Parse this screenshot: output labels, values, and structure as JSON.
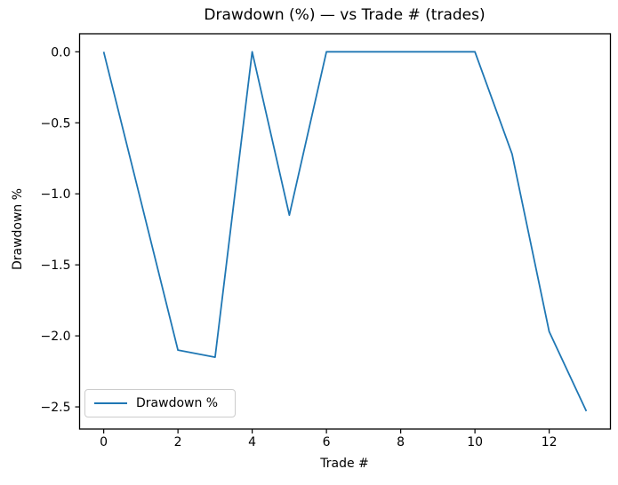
{
  "window": {
    "background": "#ffffff"
  },
  "chart_data": {
    "type": "line",
    "title": "Drawdown (%) — vs Trade # (trades)",
    "xlabel": "Trade #",
    "ylabel": "Drawdown %",
    "x": [
      0,
      1,
      2,
      3,
      4,
      5,
      6,
      7,
      8,
      9,
      10,
      11,
      12,
      13
    ],
    "series": [
      {
        "name": "Drawdown %",
        "color": "#1f77b4",
        "values": [
          0.0,
          -1.05,
          -2.1,
          -2.15,
          0.0,
          -1.15,
          0.0,
          0.0,
          0.0,
          0.0,
          0.0,
          -0.72,
          -1.97,
          -2.53
        ]
      }
    ],
    "xlim": [
      -0.65,
      13.65
    ],
    "ylim": [
      -2.656,
      0.127
    ],
    "xticks": {
      "values": [
        0,
        2,
        4,
        6,
        8,
        10,
        12
      ],
      "labels": [
        "0",
        "2",
        "4",
        "6",
        "8",
        "10",
        "12"
      ]
    },
    "yticks": {
      "values": [
        0,
        -0.5,
        -1,
        -1.5,
        -2,
        -2.5
      ],
      "labels": [
        "0.0",
        "−0.5",
        "−1.0",
        "−1.5",
        "−2.0",
        "−2.5"
      ]
    },
    "grid": false,
    "legend": {
      "position": "lower left",
      "entries": [
        {
          "label": "Drawdown %",
          "color": "#1f77b4"
        }
      ]
    }
  },
  "colors": {
    "line": "#1f77b4",
    "text": "#000000",
    "spine": "#000000",
    "legend_border": "#cccccc",
    "background": "#ffffff"
  }
}
